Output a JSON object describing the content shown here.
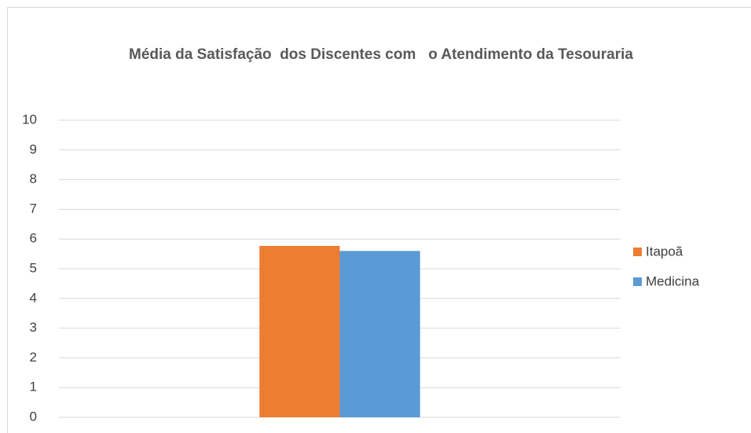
{
  "chart_data": {
    "type": "bar",
    "title": "Média da Satisfação  dos Discentes com   o Atendimento da Tesouraria",
    "categories": [
      null
    ],
    "series": [
      {
        "name": "Itapoã",
        "color": "#ed7d31",
        "values": [
          5.77
        ]
      },
      {
        "name": "Medicina",
        "color": "#5b9bd5",
        "values": [
          5.6
        ]
      }
    ],
    "ylim": [
      0,
      10
    ],
    "yticks": [
      0,
      1,
      2,
      3,
      4,
      5,
      6,
      7,
      8,
      9,
      10
    ],
    "grid": true,
    "legend": "right"
  }
}
